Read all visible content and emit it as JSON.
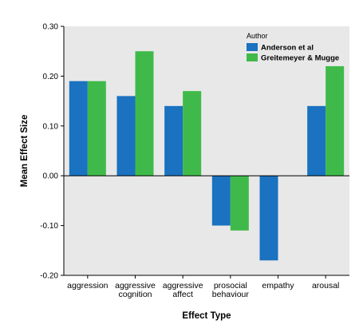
{
  "chart_data": {
    "type": "bar",
    "xlabel": "Effect Type",
    "ylabel": "Mean Effect Size",
    "ylim": [
      -0.2,
      0.3
    ],
    "yticks": [
      "-0.20",
      "-0.10",
      "0.00",
      "0.10",
      "0.20",
      "0.30"
    ],
    "categories": [
      [
        "aggression"
      ],
      [
        "aggressive",
        "cognition"
      ],
      [
        "aggressive",
        "affect"
      ],
      [
        "prosocial",
        "behaviour"
      ],
      [
        "empathy"
      ],
      [
        "arousal"
      ]
    ],
    "legend": {
      "title": "Author",
      "placement": "top-right"
    },
    "series": [
      {
        "name": "Anderson et al",
        "color": "#1a72c0",
        "values": [
          0.19,
          0.16,
          0.14,
          -0.1,
          -0.17,
          0.14
        ]
      },
      {
        "name": "Greitemeyer & Mugge",
        "color": "#3fba4a",
        "values": [
          0.19,
          0.25,
          0.17,
          -0.11,
          null,
          0.22
        ]
      }
    ],
    "plot_background": "#e8e8e8",
    "grid": false
  }
}
